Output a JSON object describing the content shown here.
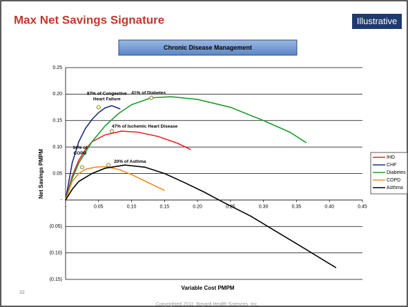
{
  "page": {
    "title": "Max Net Savings Signature",
    "badge": "Illustrative",
    "page_number": "32",
    "footer": "Copyrighted 2011, Boyard Health Sciences, Inc."
  },
  "chart_data": {
    "type": "line",
    "title": "Chronic Disease Management",
    "xlabel": "Variable Cost PMPM",
    "ylabel": "Net Savings PMPM",
    "xlim": [
      0,
      0.45
    ],
    "ylim": [
      -0.15,
      0.25
    ],
    "xticks": [
      {
        "value": 0,
        "label": "-"
      },
      0.05,
      {
        "value": 0.1,
        "label": "0.10"
      },
      0.15,
      {
        "value": 0.2,
        "label": "0.20"
      },
      0.25,
      {
        "value": 0.3,
        "label": "0.30"
      },
      0.35,
      {
        "value": 0.4,
        "label": "0.40"
      },
      0.45
    ],
    "yticks": [
      {
        "value": -0.15,
        "label": "(0.15)"
      },
      {
        "value": -0.1,
        "label": "(0.10)"
      },
      {
        "value": -0.05,
        "label": "(0.05)"
      },
      {
        "value": 0,
        "label": "-"
      },
      0.05,
      {
        "value": 0.1,
        "label": "0.10"
      },
      0.15,
      {
        "value": 0.2,
        "label": "0.20"
      },
      0.25
    ],
    "grid": true,
    "legend": "right",
    "series": [
      {
        "name": "IHD",
        "color": "#e8212a",
        "x": [
          0,
          0.01,
          0.02,
          0.03,
          0.04,
          0.06,
          0.085,
          0.11,
          0.14,
          0.17,
          0.19
        ],
        "values": [
          0,
          0.045,
          0.075,
          0.095,
          0.11,
          0.123,
          0.13,
          0.128,
          0.12,
          0.107,
          0.095
        ]
      },
      {
        "name": "CHF",
        "color": "#1f2a7a",
        "x": [
          0,
          0.01,
          0.02,
          0.03,
          0.04,
          0.05,
          0.06,
          0.07,
          0.083
        ],
        "values": [
          0,
          0.07,
          0.11,
          0.135,
          0.152,
          0.165,
          0.174,
          0.178,
          0.172
        ]
      },
      {
        "name": "Diabetes",
        "color": "#1e9a2c",
        "x": [
          0,
          0.01,
          0.02,
          0.04,
          0.06,
          0.08,
          0.1,
          0.13,
          0.16,
          0.2,
          0.25,
          0.3,
          0.34,
          0.365
        ],
        "values": [
          0,
          0.04,
          0.07,
          0.11,
          0.14,
          0.163,
          0.18,
          0.193,
          0.195,
          0.19,
          0.175,
          0.15,
          0.128,
          0.108
        ]
      },
      {
        "name": "COPD",
        "color": "#f08a24",
        "x": [
          0,
          0.01,
          0.02,
          0.03,
          0.045,
          0.06,
          0.08,
          0.1,
          0.12,
          0.15
        ],
        "values": [
          0,
          0.035,
          0.05,
          0.058,
          0.062,
          0.063,
          0.058,
          0.048,
          0.036,
          0.018
        ]
      },
      {
        "name": "Asthma",
        "color": "#000000",
        "x": [
          0,
          0.01,
          0.02,
          0.04,
          0.06,
          0.09,
          0.12,
          0.15,
          0.18,
          0.21,
          0.24,
          0.28,
          0.32,
          0.36,
          0.41
        ],
        "values": [
          0,
          0.02,
          0.035,
          0.05,
          0.06,
          0.066,
          0.062,
          0.05,
          0.033,
          0.015,
          -0.005,
          -0.03,
          -0.06,
          -0.09,
          -0.128
        ]
      }
    ],
    "annotations": [
      {
        "lines": [
          "87% of Congestive",
          "Heart Failure"
        ],
        "x": 0.05,
        "y": 0.175
      },
      {
        "lines": [
          "41% of Diabetes"
        ],
        "x": 0.13,
        "y": 0.193
      },
      {
        "lines": [
          "47% of Ischemic Heart Disease"
        ],
        "x": 0.07,
        "y": 0.13
      },
      {
        "lines": [
          "34% of",
          "COPD"
        ],
        "x": 0.025,
        "y": 0.062
      },
      {
        "lines": [
          "20% of Asthma"
        ],
        "x": 0.065,
        "y": 0.066
      }
    ]
  }
}
